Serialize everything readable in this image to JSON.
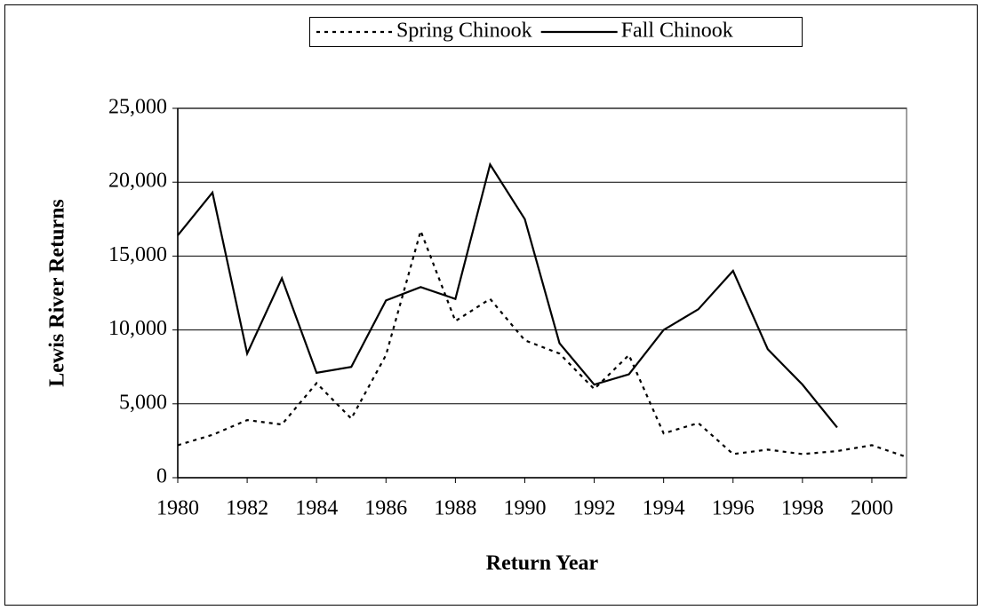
{
  "chart_data": {
    "type": "line",
    "xlabel": "Return Year",
    "ylabel": "Lewis River Returns",
    "x": [
      1980,
      1981,
      1982,
      1983,
      1984,
      1985,
      1986,
      1987,
      1988,
      1989,
      1990,
      1991,
      1992,
      1993,
      1994,
      1995,
      1996,
      1997,
      1998,
      1999,
      2000,
      2001
    ],
    "series": [
      {
        "name": "Spring Chinook",
        "color": "#000000",
        "dash": "dotted",
        "values": [
          2200,
          2900,
          3900,
          3600,
          6400,
          4000,
          8300,
          16700,
          10600,
          12100,
          9300,
          8400,
          6000,
          8300,
          3000,
          3700,
          1600,
          1900,
          1600,
          1800,
          2200,
          1400
        ]
      },
      {
        "name": "Fall Chinook",
        "color": "#000000",
        "dash": "solid",
        "values": [
          16400,
          19300,
          8400,
          13500,
          7100,
          7500,
          12000,
          12900,
          12100,
          21200,
          17500,
          9100,
          6300,
          7000,
          10000,
          11400,
          14000,
          8700,
          6300,
          3400,
          null,
          null
        ]
      }
    ],
    "xlim": [
      1980,
      2001
    ],
    "xticks": [
      1980,
      1982,
      1984,
      1986,
      1988,
      1990,
      1992,
      1994,
      1996,
      1998,
      2000
    ],
    "ylim": [
      0,
      25000
    ],
    "yticks": [
      0,
      {
        "value": 5000,
        "label": "5,000"
      },
      {
        "value": 10000,
        "label": "10,000"
      },
      {
        "value": 15000,
        "label": "15,000"
      },
      {
        "value": 20000,
        "label": "20,000"
      },
      {
        "value": 25000,
        "label": "25,000"
      }
    ],
    "grid": true,
    "legend": "top"
  }
}
